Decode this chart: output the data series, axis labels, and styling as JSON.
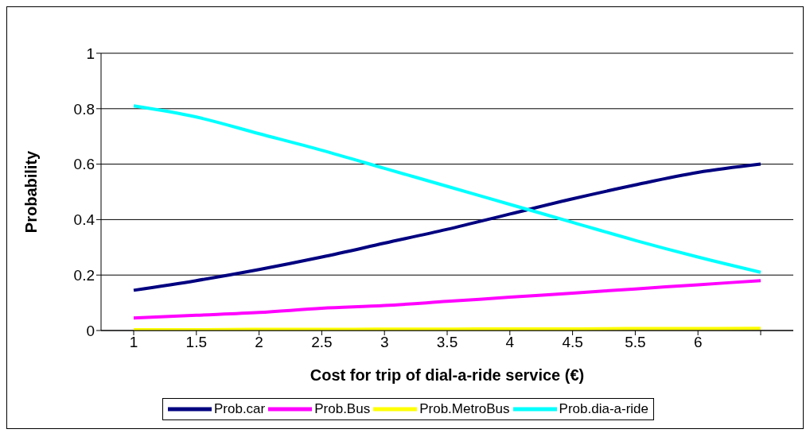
{
  "chart_data": {
    "type": "line",
    "xlabel": "Cost for trip of dial-a-ride service (€)",
    "ylabel": "Probability",
    "categories": [
      "1",
      "1.5",
      "2",
      "2.5",
      "3",
      "3.5",
      "4",
      "4.5",
      "5.5",
      "6",
      null
    ],
    "series": [
      {
        "name": "Prob.car",
        "color": "#000080",
        "values": [
          0.145,
          0.18,
          0.22,
          0.265,
          0.315,
          0.365,
          0.42,
          0.475,
          0.525,
          0.57,
          0.6
        ]
      },
      {
        "name": "Prob.Bus",
        "color": "#ff00ff",
        "values": [
          0.045,
          0.055,
          0.065,
          0.08,
          0.09,
          0.105,
          0.12,
          0.135,
          0.15,
          0.165,
          0.18
        ]
      },
      {
        "name": "Prob.MetroBus",
        "color": "#ffff00",
        "values": [
          0.003,
          0.003,
          0.004,
          0.004,
          0.005,
          0.005,
          0.006,
          0.006,
          0.007,
          0.007,
          0.008
        ]
      },
      {
        "name": "Prob.dia-a-ride",
        "color": "#00ffff",
        "values": [
          0.81,
          0.77,
          0.71,
          0.65,
          0.585,
          0.52,
          0.455,
          0.39,
          0.325,
          0.265,
          0.21
        ]
      }
    ],
    "ylim": [
      0,
      1
    ],
    "yticks": [
      0,
      0.2,
      0.4,
      0.6,
      0.8,
      1
    ],
    "grid": "y",
    "legend": "bottom",
    "marker": "none",
    "line_style": "solid"
  }
}
